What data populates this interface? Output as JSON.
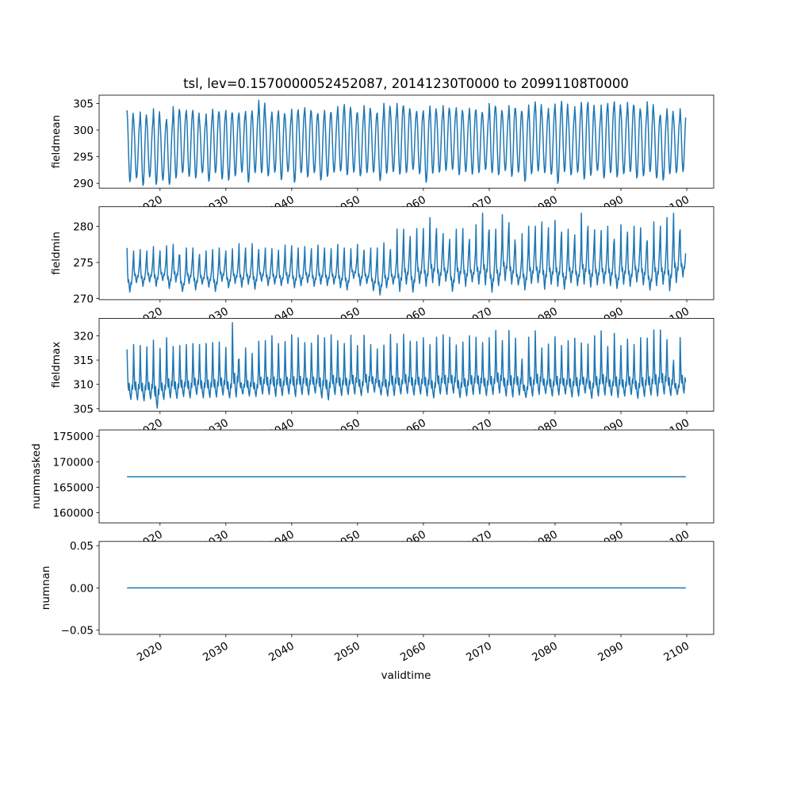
{
  "chart_data": [
    {
      "type": "line",
      "title": "tsl, lev=0.1570000052452087, 20141230T0000 to 20991108T0000",
      "xlabel": "validtime",
      "x_start": "20141230T0000",
      "x_end": "20991108T0000",
      "xlim": [
        2010.75,
        2104.09
      ],
      "xticks": [
        2020,
        2030,
        2040,
        2050,
        2060,
        2070,
        2080,
        2090,
        2100
      ],
      "xtick_labels": [
        "2020",
        "2030",
        "2040",
        "2050",
        "2060",
        "2070",
        "2080",
        "2090",
        "2100"
      ],
      "color": "#1f77b4",
      "panels": [
        {
          "ylabel": "fieldmean",
          "ylim": [
            289.1,
            306.55
          ],
          "yticks": [
            290,
            295,
            300,
            305
          ],
          "ytick_labels": [
            "290",
            "295",
            "300",
            "305"
          ],
          "seasonal_shape": [
            1,
            0.86,
            0.62,
            0.34,
            0.12,
            0.0,
            0.03,
            0.18,
            0.42,
            0.66,
            0.86,
            0.96
          ],
          "annual_max": [
            303.7,
            302.0,
            303.4,
            302.0,
            304.0,
            301.8,
            302.0,
            304.4,
            303.5,
            303.7,
            303.7,
            301.8,
            303.0,
            303.9,
            303.2,
            303.7,
            303.2,
            303.2,
            303.5,
            303.6,
            305.6,
            302.8,
            303.4,
            303.6,
            302.6,
            303.9,
            303.8,
            304.2,
            303.3,
            303.1,
            303.7,
            303.3,
            304.4,
            304.8,
            303.7,
            303.2,
            304.6,
            303.4,
            303.2,
            305.0,
            303.6,
            305.0,
            304.5,
            303.6,
            303.5,
            303.6,
            304.5,
            303.3,
            304.6,
            303.8,
            304.2,
            303.2,
            304.1,
            303.8,
            303.0,
            305.0,
            304.2,
            303.2,
            304.6,
            304.0,
            303.3,
            304.7,
            305.3,
            303.2,
            304.1,
            304.9,
            305.4,
            303.1,
            304.4,
            305.2,
            305.2,
            302.9,
            304.7,
            305.0,
            305.3,
            303.6,
            305.2,
            304.5,
            303.5,
            305.3,
            303.0,
            302.8,
            304.0,
            302.4,
            304.0
          ],
          "annual_min": [
            290.3,
            291.0,
            289.6,
            291.2,
            289.8,
            290.6,
            289.8,
            291.0,
            292.0,
            291.3,
            291.0,
            292.0,
            290.4,
            292.0,
            290.8,
            290.6,
            291.4,
            292.1,
            290.2,
            292.0,
            292.0,
            291.4,
            292.1,
            290.7,
            292.2,
            290.2,
            292.0,
            291.2,
            292.0,
            290.6,
            291.3,
            292.1,
            292.3,
            291.6,
            292.1,
            291.4,
            292.0,
            292.1,
            290.5,
            291.9,
            292.2,
            291.7,
            292.0,
            292.6,
            291.8,
            290.2,
            291.9,
            292.1,
            292.4,
            292.6,
            291.6,
            292.2,
            291.7,
            292.0,
            292.6,
            292.0,
            291.6,
            292.4,
            291.3,
            292.1,
            290.4,
            291.8,
            292.3,
            292.0,
            291.7,
            290.0,
            292.2,
            291.6,
            292.1,
            290.8,
            291.5,
            292.4,
            291.0,
            292.0,
            291.2,
            291.8,
            292.2,
            291.0,
            291.4,
            292.2,
            291.0,
            290.6,
            291.8,
            292.0,
            292.2
          ]
        },
        {
          "ylabel": "fieldmin",
          "ylim": [
            269.86,
            282.7
          ],
          "yticks": [
            270,
            275,
            280
          ],
          "ytick_labels": [
            "270",
            "275",
            "280"
          ],
          "seasonal_shape": [
            1,
            0.45,
            0.22,
            0.28,
            0.12,
            0.0,
            0.1,
            0.22,
            0.18,
            0.32,
            0.5,
            0.72
          ],
          "annual_max": [
            277.0,
            276.6,
            276.8,
            276.6,
            277.2,
            276.6,
            277.3,
            277.5,
            276.0,
            277.0,
            277.0,
            276.1,
            276.6,
            276.8,
            277.0,
            276.6,
            276.9,
            277.6,
            277.0,
            277.6,
            276.8,
            277.0,
            276.9,
            276.7,
            277.4,
            277.3,
            277.0,
            277.2,
            276.9,
            277.4,
            277.0,
            276.9,
            277.5,
            277.0,
            276.9,
            277.5,
            276.7,
            277.0,
            277.0,
            277.7,
            276.8,
            279.6,
            279.6,
            278.6,
            279.7,
            279.7,
            281.2,
            279.7,
            279.0,
            278.2,
            279.6,
            279.7,
            278.2,
            280.2,
            281.8,
            279.5,
            279.6,
            281.6,
            280.5,
            277.0,
            279.0,
            280.0,
            280.0,
            280.6,
            279.8,
            280.8,
            279.2,
            279.6,
            278.8,
            281.8,
            280.0,
            279.5,
            279.4,
            280.0,
            278.2,
            280.2,
            279.2,
            280.0,
            279.8,
            278.0,
            280.6,
            280.0,
            281.2,
            281.8,
            279.5
          ],
          "annual_min": [
            270.9,
            272.2,
            271.7,
            272.3,
            271.7,
            272.5,
            271.4,
            272.3,
            271.0,
            272.1,
            271.2,
            272.0,
            271.6,
            271.0,
            272.4,
            271.5,
            272.1,
            271.6,
            272.0,
            271.3,
            272.4,
            271.8,
            272.0,
            271.8,
            272.1,
            271.5,
            271.8,
            272.2,
            271.7,
            272.0,
            271.8,
            272.0,
            271.5,
            271.2,
            272.8,
            271.8,
            272.1,
            271.1,
            270.5,
            271.5,
            272.0,
            271.0,
            272.0,
            270.9,
            272.1,
            271.7,
            272.2,
            271.8,
            272.4,
            271.0,
            272.1,
            271.7,
            272.3,
            272.0,
            271.9,
            270.9,
            271.8,
            272.5,
            272.0,
            271.9,
            271.2,
            272.1,
            272.2,
            271.3,
            272.0,
            271.7,
            271.3,
            272.2,
            271.8,
            272.0,
            271.6,
            271.9,
            272.1,
            271.8,
            271.4,
            272.0,
            271.7,
            272.3,
            271.9,
            271.2,
            271.8,
            272.0,
            271.1,
            272.2,
            273.0
          ]
        },
        {
          "ylabel": "fieldmax",
          "ylim": [
            304.46,
            323.6
          ],
          "yticks": [
            305,
            310,
            315,
            320
          ],
          "ytick_labels": [
            "305",
            "310",
            "315",
            "320"
          ],
          "seasonal_shape": [
            1,
            0.55,
            0.25,
            0.18,
            0.32,
            0.15,
            0.06,
            0.0,
            0.12,
            0.28,
            0.2,
            0.5
          ],
          "annual_max": [
            317.2,
            318.2,
            318.0,
            317.7,
            319.1,
            317.4,
            319.6,
            317.8,
            318.0,
            318.2,
            318.4,
            318.2,
            318.4,
            318.6,
            318.7,
            317.6,
            322.7,
            315.2,
            317.5,
            316.4,
            318.9,
            319.0,
            320.0,
            318.4,
            318.8,
            320.2,
            319.6,
            318.6,
            318.5,
            320.1,
            319.6,
            320.2,
            319.0,
            318.4,
            320.1,
            318.0,
            320.1,
            318.2,
            317.3,
            318.1,
            320.3,
            318.4,
            320.3,
            318.9,
            318.8,
            319.6,
            318.2,
            319.7,
            320.2,
            319.7,
            318.1,
            318.7,
            320.0,
            319.7,
            318.6,
            319.6,
            321.1,
            319.0,
            321.1,
            319.5,
            315.2,
            319.7,
            321.0,
            317.5,
            318.3,
            319.8,
            318.0,
            319.0,
            319.5,
            318.5,
            318.3,
            320.0,
            321.0,
            317.8,
            320.5,
            318.0,
            319.3,
            318.2,
            319.6,
            319.5,
            321.2,
            321.2,
            319.2,
            315.0,
            319.6
          ],
          "annual_min": [
            306.9,
            306.8,
            306.6,
            307.0,
            305.1,
            306.9,
            307.2,
            307.1,
            307.5,
            307.2,
            307.9,
            307.2,
            307.3,
            307.4,
            307.8,
            307.2,
            307.4,
            308.0,
            307.6,
            307.5,
            308.0,
            307.9,
            307.5,
            307.7,
            308.0,
            307.5,
            307.9,
            307.8,
            308.2,
            307.2,
            306.8,
            307.9,
            307.7,
            307.9,
            308.0,
            307.7,
            308.3,
            308.4,
            307.8,
            307.6,
            307.7,
            308.0,
            308.1,
            307.8,
            308.0,
            307.6,
            307.2,
            308.0,
            307.9,
            308.2,
            307.3,
            307.6,
            307.9,
            308.0,
            307.7,
            307.9,
            308.2,
            307.6,
            307.4,
            307.8,
            307.3,
            307.6,
            307.9,
            308.1,
            307.6,
            307.8,
            308.0,
            307.4,
            307.6,
            308.2,
            307.1,
            307.6,
            307.8,
            307.7,
            307.3,
            307.6,
            307.9,
            307.1,
            307.5,
            307.8,
            307.6,
            308.0,
            307.7,
            307.9,
            308.2
          ]
        },
        {
          "ylabel": "nummasked",
          "ylim": [
            158020,
            176250
          ],
          "yticks": [
            160000,
            165000,
            170000,
            175000
          ],
          "ytick_labels": [
            "160000",
            "165000",
            "170000",
            "175000"
          ],
          "constant": 167050
        },
        {
          "ylabel": "numnan",
          "ylim": [
            -0.055,
            0.055
          ],
          "yticks": [
            -0.05,
            0.0,
            0.05
          ],
          "ytick_labels": [
            "−0.05",
            "0.00",
            "0.05"
          ],
          "constant": 0.0
        }
      ]
    }
  ]
}
